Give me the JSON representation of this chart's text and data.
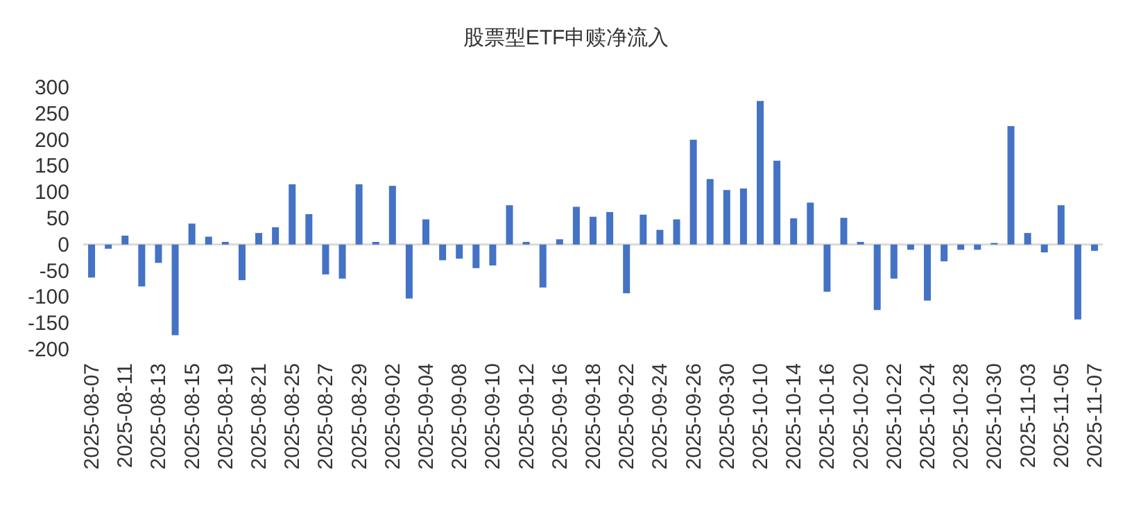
{
  "chart_data": {
    "type": "bar",
    "title": "股票型ETF申赎净流入",
    "categories": [
      "2025-08-07",
      null,
      "2025-08-11",
      null,
      "2025-08-13",
      null,
      "2025-08-15",
      null,
      "2025-08-19",
      null,
      "2025-08-21",
      null,
      "2025-08-25",
      null,
      "2025-08-27",
      null,
      "2025-08-29",
      null,
      "2025-09-02",
      null,
      "2025-09-04",
      null,
      "2025-09-08",
      null,
      "2025-09-10",
      null,
      "2025-09-12",
      null,
      "2025-09-16",
      null,
      "2025-09-18",
      null,
      "2025-09-22",
      null,
      "2025-09-24",
      null,
      "2025-09-26",
      null,
      "2025-09-30",
      null,
      "2025-10-10",
      null,
      "2025-10-14",
      null,
      "2025-10-16",
      null,
      "2025-10-20",
      null,
      "2025-10-22",
      null,
      "2025-10-24",
      null,
      "2025-10-28",
      null,
      "2025-10-30",
      null,
      "2025-11-03",
      null,
      "2025-11-05",
      null,
      "2025-11-07"
    ],
    "values": [
      -63,
      -8,
      17,
      -80,
      -35,
      -173,
      40,
      15,
      5,
      -68,
      22,
      33,
      115,
      58,
      -57,
      -65,
      115,
      5,
      112,
      -103,
      48,
      -30,
      -27,
      -45,
      -40,
      75,
      5,
      -82,
      10,
      72,
      53,
      62,
      -93,
      57,
      28,
      48,
      200,
      125,
      104,
      107,
      274,
      160,
      50,
      80,
      -90,
      51,
      5,
      -125,
      -65,
      -10,
      -107,
      -32,
      -10,
      -10,
      3,
      226,
      22,
      -15,
      75,
      -143,
      -12
    ],
    "color": "#4472c4",
    "ylim": [
      -200,
      300
    ],
    "yticks": [
      -200,
      -150,
      -100,
      -50,
      0,
      50,
      100,
      150,
      200,
      250,
      300
    ]
  }
}
